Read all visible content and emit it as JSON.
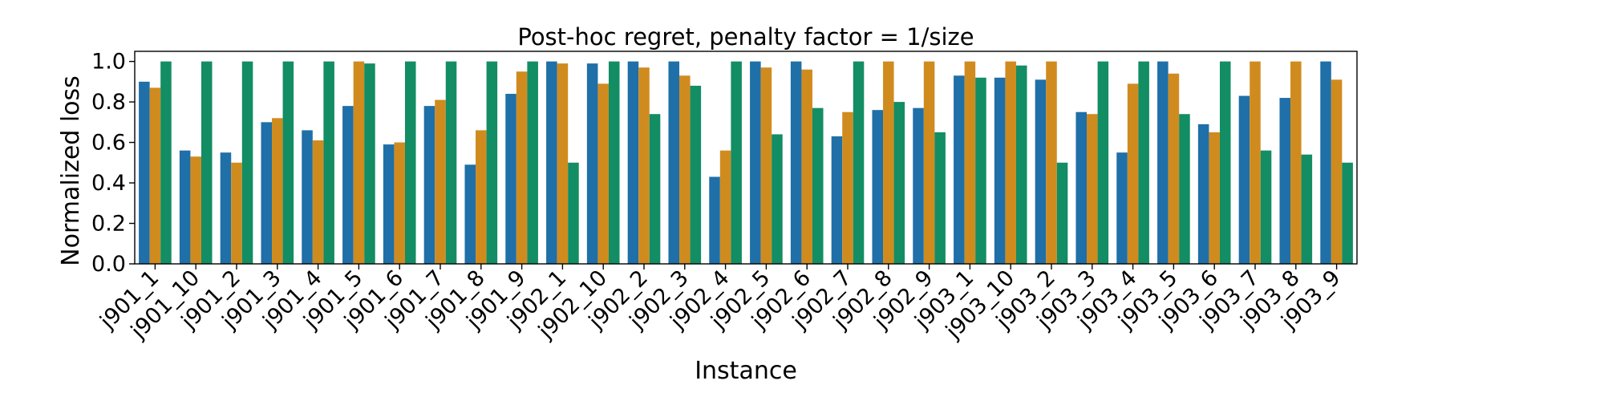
{
  "chart_data": {
    "type": "bar",
    "title": "Post-hoc regret, penalty factor = 1/size",
    "xlabel": "Instance",
    "ylabel": "Normalized loss",
    "ylim": [
      0,
      1.05
    ],
    "yticks": [
      0.0,
      0.2,
      0.4,
      0.6,
      0.8,
      1.0
    ],
    "ytick_labels": [
      "0.0",
      "0.2",
      "0.4",
      "0.6",
      "0.8",
      "1.0"
    ],
    "grid": false,
    "legend": "none",
    "categories": [
      "j901_1",
      "j901_10",
      "j901_2",
      "j901_3",
      "j901_4",
      "j901_5",
      "j901_6",
      "j901_7",
      "j901_8",
      "j901_9",
      "j902_1",
      "j902_10",
      "j902_2",
      "j902_3",
      "j902_4",
      "j902_5",
      "j902_6",
      "j902_7",
      "j902_8",
      "j902_9",
      "j903_1",
      "j903_10",
      "j903_2",
      "j903_3",
      "j903_4",
      "j903_5",
      "j903_6",
      "j903_7",
      "j903_8",
      "j903_9"
    ],
    "series": [
      {
        "color": "#1f6fa8",
        "values": [
          0.9,
          0.56,
          0.55,
          0.7,
          0.66,
          0.78,
          0.59,
          0.78,
          0.49,
          0.84,
          1.0,
          0.99,
          1.0,
          1.0,
          0.43,
          1.0,
          1.0,
          0.63,
          0.76,
          0.77,
          0.93,
          0.92,
          0.91,
          0.75,
          0.55,
          1.0,
          0.69,
          0.83,
          0.82,
          1.0
        ]
      },
      {
        "color": "#d08b1f",
        "values": [
          0.87,
          0.53,
          0.5,
          0.72,
          0.61,
          1.0,
          0.6,
          0.81,
          0.66,
          0.95,
          0.99,
          0.89,
          0.97,
          0.93,
          0.56,
          0.97,
          0.96,
          0.75,
          1.0,
          1.0,
          1.0,
          1.0,
          1.0,
          0.74,
          0.89,
          0.94,
          0.65,
          1.0,
          1.0,
          0.91
        ]
      },
      {
        "color": "#138d63",
        "values": [
          1.0,
          1.0,
          1.0,
          1.0,
          1.0,
          0.99,
          1.0,
          1.0,
          1.0,
          1.0,
          0.5,
          1.0,
          0.74,
          0.88,
          1.0,
          0.64,
          0.77,
          1.0,
          0.8,
          0.65,
          0.92,
          0.98,
          0.5,
          1.0,
          1.0,
          0.74,
          1.0,
          0.56,
          0.54,
          0.5
        ]
      }
    ]
  }
}
